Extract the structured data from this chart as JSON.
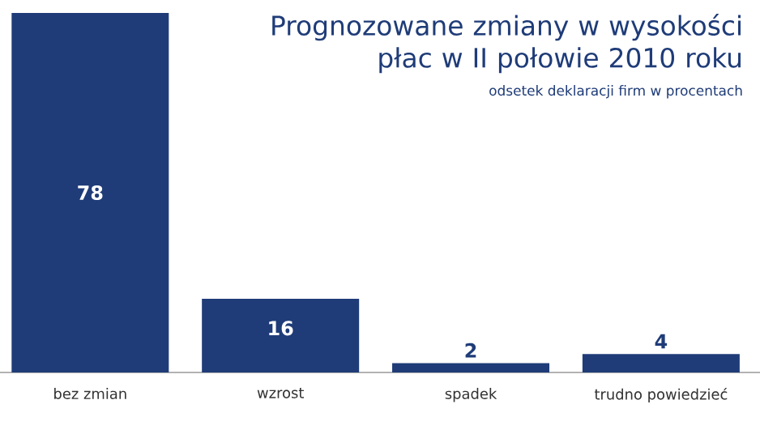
{
  "chart_data": {
    "type": "bar",
    "title": "Prognozowane zmiany w wysokości płac w II połowie 2010 roku",
    "subtitle": "odsetek deklaracji firm w procentach",
    "categories": [
      "bez zmian",
      "wzrost",
      "spadek",
      "trudno powiedzieć"
    ],
    "values": [
      78,
      16,
      2,
      4
    ],
    "color": "#1f3c78",
    "data_labels": true
  }
}
